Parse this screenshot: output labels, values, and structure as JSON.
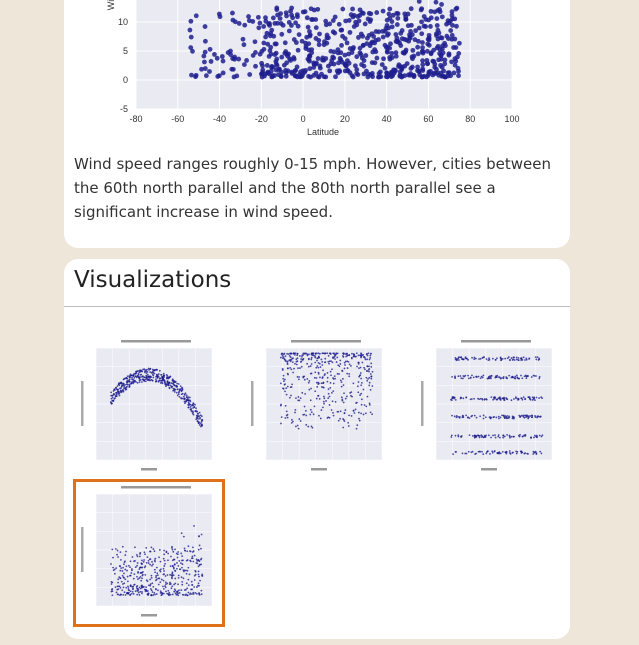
{
  "wind_section": {
    "description": "Wind speed ranges roughly 0-15 mph. However, cities between the 60th north parallel and the 80th north parallel see a significant increase in wind speed.",
    "chart_data": {
      "type": "scatter",
      "ylabel": "Wind",
      "xlabel": "Latitude",
      "xlim": [
        -80,
        100
      ],
      "ylim": [
        -5,
        20
      ],
      "xticks": [
        "-80",
        "-60",
        "-40",
        "-20",
        "0",
        "20",
        "40",
        "60",
        "80",
        "100"
      ],
      "yticks": [
        "-5",
        "0",
        "5",
        "10"
      ],
      "marker_color": "#1f1f8f"
    }
  },
  "visualizations": {
    "title": "Visualizations",
    "thumbnails": [
      {
        "name": "thumb-latitude-vs-max-temperature",
        "selected": false
      },
      {
        "name": "thumb-latitude-vs-humidity",
        "selected": false
      },
      {
        "name": "thumb-latitude-vs-cloudiness",
        "selected": false
      },
      {
        "name": "thumb-latitude-vs-wind-speed",
        "selected": true
      }
    ]
  },
  "colors": {
    "page_bg": "#efe6da",
    "card_bg": "#ffffff",
    "plot_bg": "#eaeaf2",
    "selected_border": "#e0711b",
    "point": "#1f1f8f"
  }
}
